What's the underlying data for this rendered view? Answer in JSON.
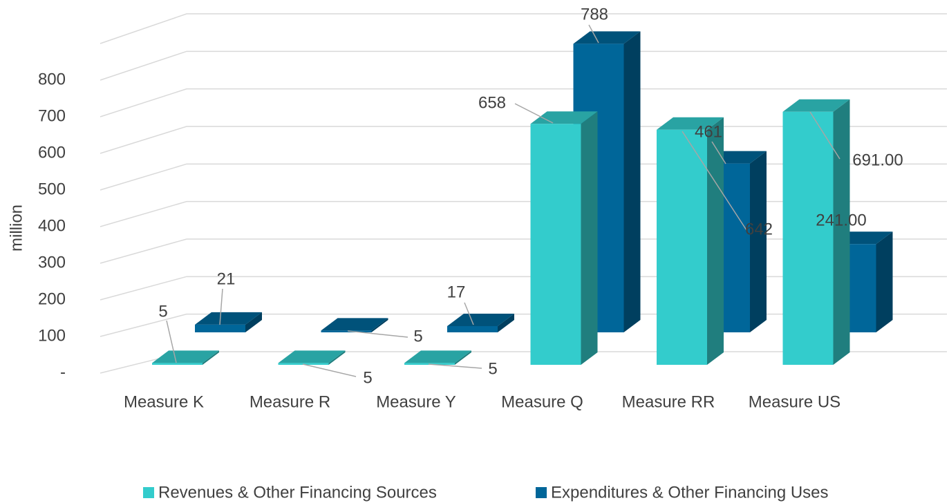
{
  "chart_data": {
    "type": "bar3d",
    "y_axis_label": "million",
    "categories": [
      "Measure K",
      "Measure R",
      "Measure Y",
      "Measure Q",
      "Measure RR",
      "Measure US"
    ],
    "series": [
      {
        "name": "Revenues & Other Financing Sources",
        "color": "#33cccc",
        "values": [
          5,
          5,
          5,
          658,
          642,
          691
        ],
        "value_labels": [
          "5",
          "5",
          "5",
          "658",
          "642",
          "691.00"
        ]
      },
      {
        "name": "Expenditures & Other Financing Uses",
        "color": "#006699",
        "values": [
          21,
          5,
          17,
          788,
          461,
          241
        ],
        "value_labels": [
          "21",
          "5",
          "17",
          "788",
          "461",
          "241.00"
        ]
      }
    ],
    "ylim": [
      0,
      900
    ],
    "yticks": [
      {
        "value": 0,
        "label": "-"
      },
      100,
      200,
      300,
      400,
      500,
      600,
      700,
      800
    ],
    "grid": true,
    "legend": "bottom"
  }
}
